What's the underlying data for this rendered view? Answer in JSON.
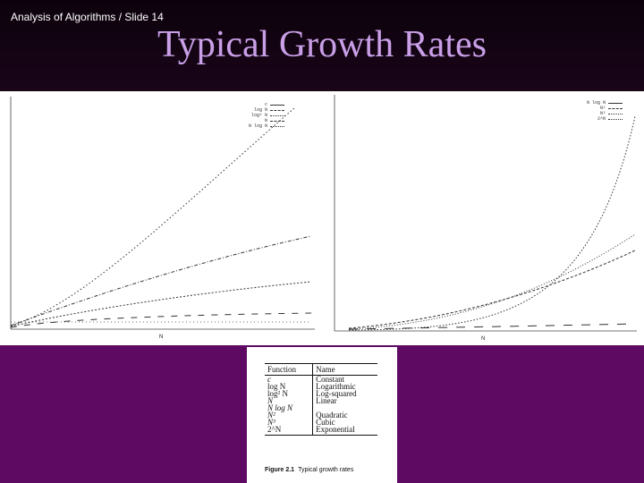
{
  "slide": {
    "label": "Analysis of Algorithms / Slide 14",
    "title": "Typical Growth Rates"
  },
  "left_plot": {
    "legend": [
      "c",
      "log N",
      "log² N",
      "N",
      "N log N"
    ],
    "xlabel": "N"
  },
  "right_plot": {
    "legend": [
      "N log N",
      "N²",
      "N³",
      "2^N"
    ],
    "xlabel": "N"
  },
  "table": {
    "headers": {
      "function": "Function",
      "name": "Name"
    },
    "rows": [
      {
        "function": "c",
        "name": "Constant"
      },
      {
        "function": "log N",
        "name": "Logarithmic"
      },
      {
        "function": "log² N",
        "name": "Log-squared"
      },
      {
        "function": "N",
        "name": "Linear"
      },
      {
        "function": "N log N",
        "name": ""
      },
      {
        "function": "N²",
        "name": "Quadratic"
      },
      {
        "function": "N³",
        "name": "Cubic"
      },
      {
        "function": "2^N",
        "name": "Exponential"
      }
    ],
    "caption_label": "Figure 2.1",
    "caption_text": "Typical growth rates"
  },
  "colors": {
    "background": "#5e0a62",
    "header": "#0c020c",
    "title": "#c9a0e8"
  }
}
